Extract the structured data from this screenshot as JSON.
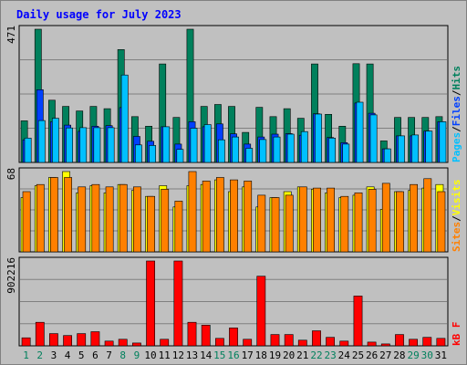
{
  "chart_data": {
    "type": "bar",
    "title": "Daily usage for July 2023",
    "days": [
      "1",
      "2",
      "3",
      "4",
      "5",
      "6",
      "7",
      "8",
      "9",
      "10",
      "11",
      "12",
      "13",
      "14",
      "15",
      "16",
      "17",
      "18",
      "19",
      "20",
      "21",
      "22",
      "23",
      "24",
      "25",
      "26",
      "27",
      "28",
      "29",
      "30",
      "31"
    ],
    "weekend_days": [
      "1",
      "2",
      "8",
      "9",
      "15",
      "16",
      "22",
      "23",
      "29",
      "30"
    ],
    "panels": [
      {
        "id": "pages-files-hits",
        "ymax_label": "471",
        "ylim": [
          0,
          471
        ],
        "legend": [
          {
            "label": "Pages",
            "color": "#00c0ff"
          },
          {
            "label": "/",
            "color": "#000000"
          },
          {
            "label": "Files",
            "color": "#0040ff"
          },
          {
            "label": "/",
            "color": "#000000"
          },
          {
            "label": "Hits",
            "color": "#00805c"
          }
        ],
        "series": [
          {
            "name": "Hits",
            "color": "#00805c",
            "values": [
              147,
              471,
              220,
              198,
              182,
              198,
              190,
              399,
              162,
              128,
              348,
              159,
              471,
              198,
              205,
              198,
              106,
              195,
              162,
              190,
              156,
              348,
              170,
              128,
              349,
              348,
              76,
              159,
              159,
              159,
              162
            ]
          },
          {
            "name": "Files",
            "color": "#0040ff",
            "values": [
              80,
              257,
              144,
              132,
              110,
              128,
              130,
              194,
              92,
              75,
              126,
              65,
              144,
              126,
              136,
              101,
              65,
              90,
              100,
              102,
              96,
              172,
              88,
              70,
              210,
              174,
              48,
              94,
              94,
              111,
              144
            ]
          },
          {
            "name": "Pages",
            "color": "#00c0ff",
            "values": [
              86,
              148,
              156,
              122,
              123,
              123,
              123,
              309,
              62,
              60,
              126,
              46,
              121,
              134,
              80,
              90,
              50,
              81,
              90,
              100,
              109,
              171,
              86,
              65,
              213,
              168,
              48,
              94,
              97,
              111,
              144
            ]
          }
        ]
      },
      {
        "id": "visits-sites",
        "ymax_label": "68",
        "ylim": [
          0,
          68
        ],
        "legend": [
          {
            "label": "Sites",
            "color": "#ff8000"
          },
          {
            "label": "/",
            "color": "#000000"
          },
          {
            "label": "Visits",
            "color": "#ffff00"
          }
        ],
        "series": [
          {
            "name": "Visits",
            "color": "#ffff00",
            "values": [
              46,
              56,
              63,
              68,
              50,
              56,
              50,
              57,
              52,
              47,
              56,
              38,
              56,
              57,
              61,
              51,
              55,
              38,
              46,
              51,
              55,
              53,
              50,
              46,
              48,
              55,
              36,
              51,
              52,
              54,
              57
            ]
          },
          {
            "name": "Sites",
            "color": "#ff8000",
            "values": [
              51,
              57,
              63,
              63,
              55,
              57,
              55,
              57,
              55,
              47,
              53,
              43,
              68,
              60,
              63,
              61,
              60,
              48,
              46,
              48,
              55,
              54,
              54,
              47,
              50,
              53,
              58,
              51,
              57,
              62,
              51
            ]
          }
        ]
      },
      {
        "id": "kb-f",
        "ymax_label": "902216",
        "ylim": [
          0,
          902216
        ],
        "legend": [
          {
            "label": "kB F",
            "color": "#ff0000"
          }
        ],
        "series": [
          {
            "name": "kB F",
            "color": "#ff0000",
            "values": [
              85000,
              250000,
              130000,
              110000,
              130000,
              150000,
              50000,
              70000,
              30000,
              902216,
              70000,
              902216,
              250000,
              220000,
              80000,
              190000,
              70000,
              740000,
              120000,
              120000,
              60000,
              160000,
              90000,
              50000,
              530000,
              40000,
              20000,
              120000,
              70000,
              90000,
              80000
            ]
          }
        ]
      }
    ],
    "colors": {
      "background": "#c0c0c0",
      "panel_border": "#000000",
      "gridline": "#808080",
      "title": "#0000ff",
      "weekday_label": "#000000",
      "weekend_label": "#00805c"
    }
  }
}
